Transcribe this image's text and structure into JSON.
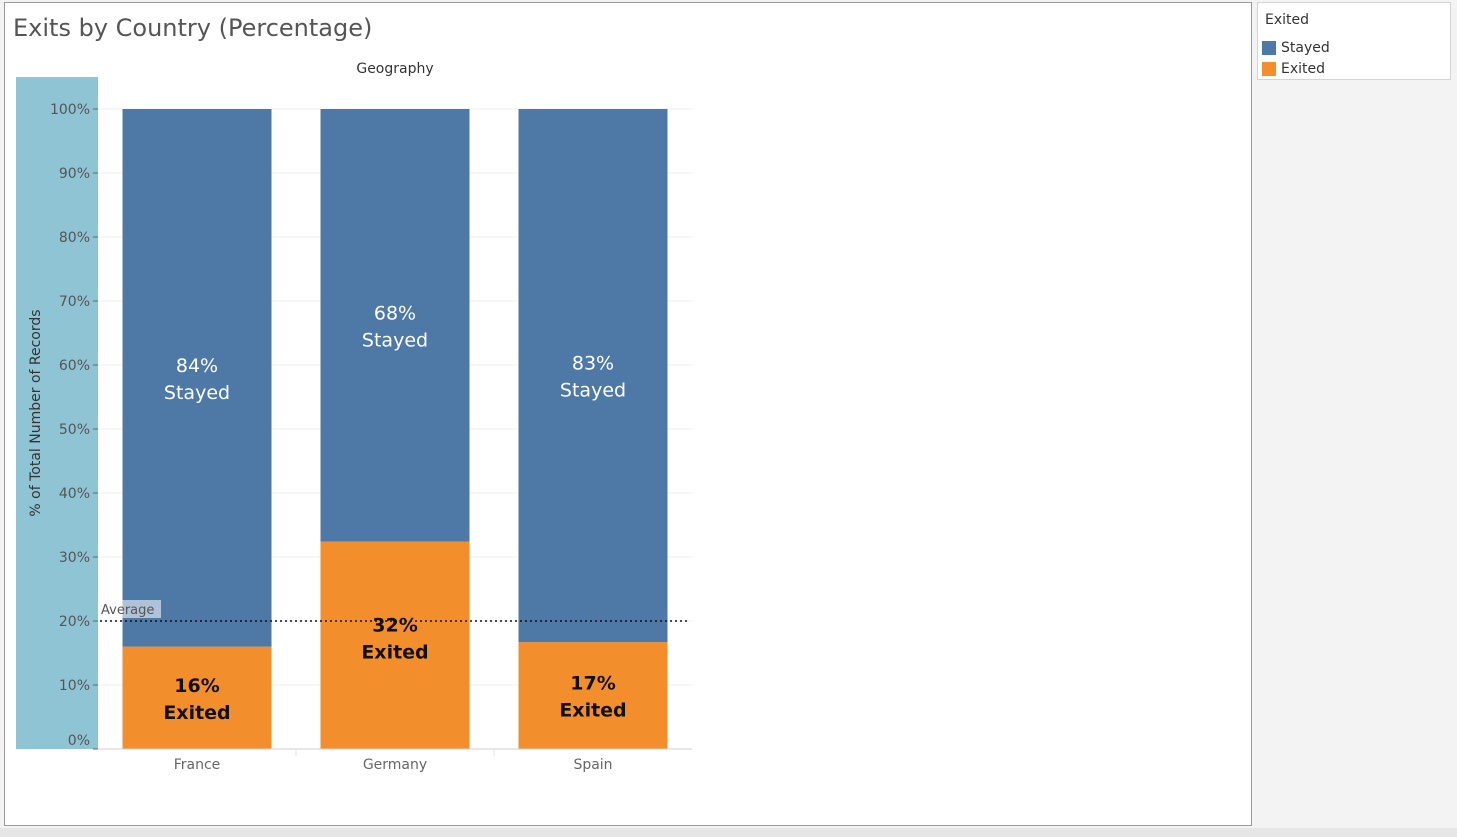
{
  "title": "Exits by Country (Percentage)",
  "legend": {
    "title": "Exited",
    "items": [
      {
        "label": "Stayed",
        "color": "#4e79a7"
      },
      {
        "label": "Exited",
        "color": "#f28e2b"
      }
    ]
  },
  "chart_data": {
    "type": "bar",
    "stacked": true,
    "column_header": "Geography",
    "ylabel": "% of Total Number of Records",
    "ylim": [
      0,
      100
    ],
    "yticks": [
      "0%",
      "10%",
      "20%",
      "30%",
      "40%",
      "50%",
      "60%",
      "70%",
      "80%",
      "90%",
      "100%"
    ],
    "categories": [
      "France",
      "Germany",
      "Spain"
    ],
    "series": [
      {
        "name": "Exited",
        "values": [
          16,
          32.4,
          16.7
        ],
        "labels": [
          "16%",
          "32%",
          "17%"
        ],
        "color": "#f28e2b"
      },
      {
        "name": "Stayed",
        "values": [
          84,
          67.6,
          83.3
        ],
        "labels": [
          "84%",
          "68%",
          "83%"
        ],
        "color": "#4e79a7"
      }
    ],
    "reference_line": {
      "label": "Average",
      "value": 20
    },
    "grid": true
  }
}
